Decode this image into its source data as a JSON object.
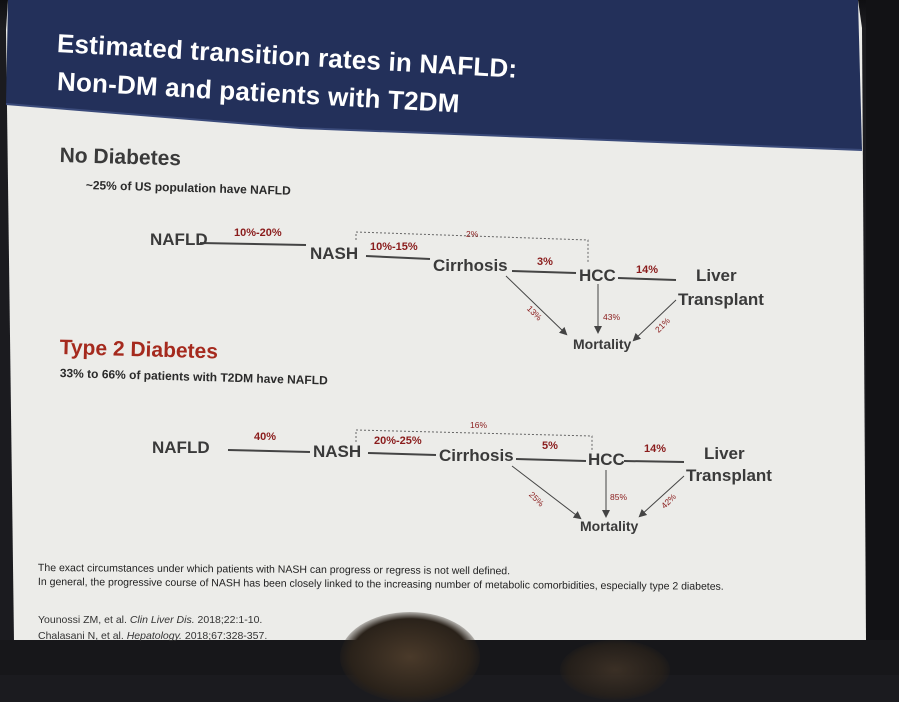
{
  "slide": {
    "title_line1": "Estimated transition rates in NAFLD:",
    "title_line2": "Non-DM and patients with T2DM",
    "colors": {
      "title_band": "#23305a",
      "slide_bg": "#ecece9",
      "accent_red": "#a52a1e",
      "rate_text": "#8a1c1c"
    }
  },
  "no_diabetes": {
    "heading": "No Diabetes",
    "subtitle": "~25% of US population have NAFLD",
    "nodes": {
      "nafld": "NAFLD",
      "nash": "NASH",
      "cirrhosis": "Cirrhosis",
      "hcc": "HCC",
      "liver": "Liver",
      "transplant": "Transplant",
      "mortality": "Mortality"
    },
    "rates": {
      "nafld_nash": "10%-20%",
      "nash_cirrhosis": "10%-15%",
      "nash_hcc": "2%",
      "cirrhosis_hcc": "3%",
      "hcc_transplant": "14%",
      "cirrhosis_mortality": "13%",
      "hcc_mortality": "43%",
      "transplant_mortality": "21%"
    }
  },
  "type2_diabetes": {
    "heading": "Type 2 Diabetes",
    "subtitle": "33% to 66% of patients with T2DM have NAFLD",
    "nodes": {
      "nafld": "NAFLD",
      "nash": "NASH",
      "cirrhosis": "Cirrhosis",
      "hcc": "HCC",
      "liver": "Liver",
      "transplant": "Transplant",
      "mortality": "Mortality"
    },
    "rates": {
      "nafld_nash": "40%",
      "nash_cirrhosis": "20%-25%",
      "nash_hcc": "16%",
      "cirrhosis_hcc": "5%",
      "hcc_transplant": "14%",
      "cirrhosis_mortality": "25%",
      "hcc_mortality": "85%",
      "transplant_mortality": "42%"
    }
  },
  "footnotes": {
    "line1": "The exact circumstances under which patients with NASH can progress or regress is not well defined.",
    "line2": "In general, the progressive course of NASH has been closely linked to the increasing number of metabolic comorbidities, especially type 2 diabetes."
  },
  "references": [
    {
      "authors": "Younossi ZM, et al.",
      "journal": "Clin Liver Dis.",
      "detail": "2018;22:1-10."
    },
    {
      "authors": "Chalasani N, et al.",
      "journal": "Hepatology.",
      "detail": "2018;67:328-357."
    }
  ]
}
